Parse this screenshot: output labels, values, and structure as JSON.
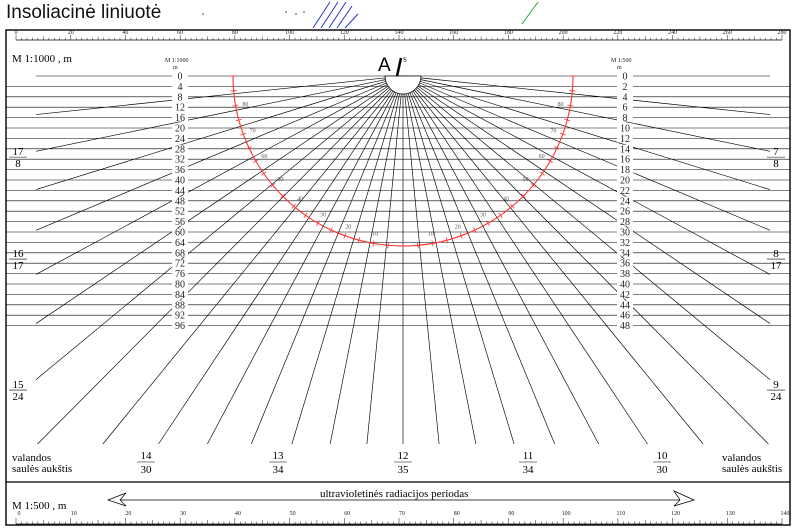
{
  "title": "Insoliacinė liniuotė",
  "top_scale": {
    "label": "M 1:1000 , m",
    "ticks": [
      "0",
      "20",
      "40",
      "60",
      "80",
      "100",
      "120",
      "140",
      "160",
      "180",
      "200",
      "220",
      "240",
      "260",
      "280"
    ]
  },
  "left_column": {
    "header_scale": "M 1:1000",
    "header_unit": "m",
    "values": [
      "0",
      "4",
      "8",
      "12",
      "16",
      "20",
      "24",
      "28",
      "32",
      "36",
      "40",
      "44",
      "48",
      "52",
      "56",
      "60",
      "64",
      "68",
      "72",
      "76",
      "80",
      "84",
      "88",
      "92",
      "96"
    ]
  },
  "right_column": {
    "header_scale": "M 1:500",
    "header_unit": "m",
    "values": [
      "0",
      "2",
      "4",
      "6",
      "8",
      "10",
      "12",
      "14",
      "16",
      "18",
      "20",
      "22",
      "24",
      "26",
      "28",
      "30",
      "32",
      "34",
      "36",
      "38",
      "40",
      "42",
      "44",
      "46",
      "48"
    ]
  },
  "pivot_label": "A",
  "north_label": "S",
  "azimuth_labels": [
    "10",
    "20",
    "30",
    "40",
    "50",
    "60",
    "70",
    "80"
  ],
  "side_hours": [
    {
      "side": "left",
      "hour": "17",
      "minute": "8"
    },
    {
      "side": "left",
      "hour": "16",
      "minute": "17"
    },
    {
      "side": "left",
      "hour": "15",
      "minute": "24"
    },
    {
      "side": "right",
      "hour": "7",
      "minute": "8"
    },
    {
      "side": "right",
      "hour": "8",
      "minute": "17"
    },
    {
      "side": "right",
      "hour": "9",
      "minute": "24"
    }
  ],
  "bottom_hours": [
    {
      "hour": "14",
      "minute": "30"
    },
    {
      "hour": "13",
      "minute": "34"
    },
    {
      "hour": "12",
      "minute": "35"
    },
    {
      "hour": "11",
      "minute": "34"
    },
    {
      "hour": "10",
      "minute": "30"
    }
  ],
  "bottom_left_label_1": "valandos",
  "bottom_left_label_2": "saulės aukštis",
  "bottom_right_label_1": "valandos",
  "bottom_right_label_2": "saulės aukštis",
  "uv_label": "ultravioletinės radiacijos periodas",
  "bottom_scale": {
    "label": "M 1:500 , m",
    "ticks": [
      "0",
      "10",
      "20",
      "30",
      "40",
      "50",
      "60",
      "70",
      "80",
      "90",
      "100",
      "110",
      "120",
      "130",
      "140"
    ]
  },
  "colors": {
    "line": "#111111",
    "arc": "#ff3333",
    "doodle_blue": "#2233cc",
    "doodle_green": "#22aa33"
  }
}
